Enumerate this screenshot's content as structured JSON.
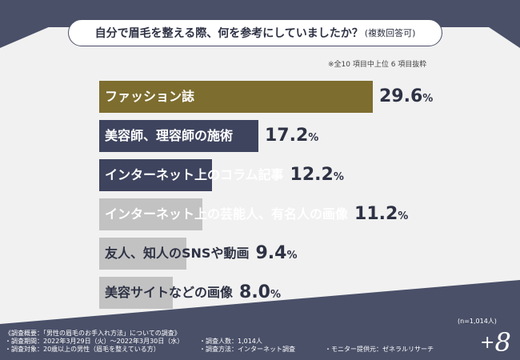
{
  "title": {
    "main": "自分で眉毛を整える際、何を参考にしていましたか？",
    "sub": "(複数回答可)"
  },
  "note": "※全10 項目中上位 6 項目抜粋",
  "colors": {
    "bg": "#f1f1f1",
    "band": "#4a5068",
    "gold": "#7d6d2f",
    "navy": "#3e445e",
    "gray": "#c2c2c2"
  },
  "chart_data": {
    "type": "bar",
    "orientation": "horizontal",
    "unit": "%",
    "categories": [
      "ファッション誌",
      "美容師、理容師の施術",
      "インターネット上のコラム記事",
      "インターネット上の芸能人、有名人の画像",
      "友人、知人のSNSや動画",
      "美容サイトなどの画像"
    ],
    "values": [
      29.6,
      17.2,
      12.2,
      11.2,
      9.4,
      8.0
    ],
    "value_labels": [
      {
        "num": "29.6",
        "pct": "%"
      },
      {
        "num": "17.2",
        "pct": "%"
      },
      {
        "num": "12.2",
        "pct": "%"
      },
      {
        "num": "11.2",
        "pct": "%"
      },
      {
        "num": "9.4",
        "pct": "%"
      },
      {
        "num": "8.0",
        "pct": "%"
      }
    ],
    "bar_colors": [
      "#7d6d2f",
      "#3e445e",
      "#3e445e",
      "#c2c2c2",
      "#c2c2c2",
      "#c2c2c2"
    ],
    "label_colors": [
      "#ffffff",
      "#ffffff",
      "#ffffff",
      "#ffffff",
      "#2e3244",
      "#2e3244"
    ],
    "xlim": [
      0,
      30
    ]
  },
  "footer": {
    "l1": "《調査概要：「男性の眉毛のお手入れ方法」についての調査》",
    "l2": "・調査期間：2022年3月29日（火）～2022年3月30日（水）",
    "l3": "・調査対象：20歳以上の男性（眉毛を整えている方）",
    "l4": "・調査人数：1,014人",
    "l5": "・調査方法：インターネット調査",
    "l6": "・モニター提供元：ゼネラルリサーチ",
    "n": "(n=1,014人)"
  },
  "logo": {
    "plus": "+",
    "num": "8"
  }
}
